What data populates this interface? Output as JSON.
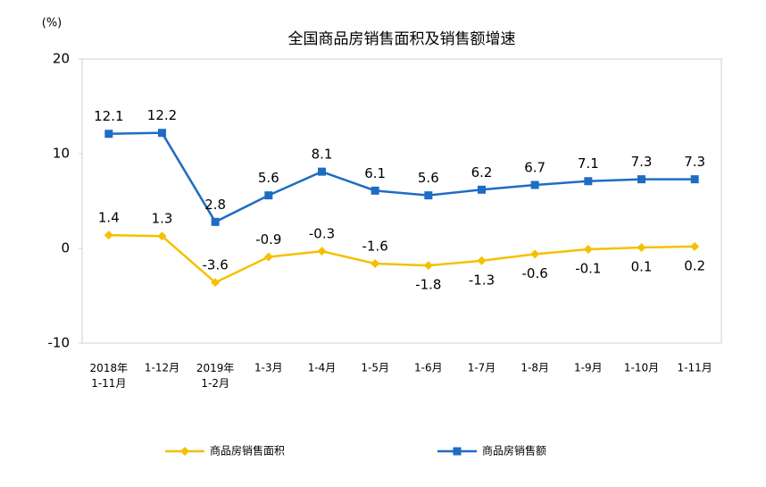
{
  "chart_data": {
    "type": "line",
    "title": "全国商品房销售面积及销售额增速",
    "y_unit": "(%)",
    "categories": [
      "2018年\n1-11月",
      "1-12月",
      "2019年\n1-2月",
      "1-3月",
      "1-4月",
      "1-5月",
      "1-6月",
      "1-7月",
      "1-8月",
      "1-9月",
      "1-10月",
      "1-11月"
    ],
    "series": [
      {
        "name": "商品房销售面积",
        "color": "#f5c000",
        "marker": "diamond",
        "values": [
          1.4,
          1.3,
          -3.6,
          -0.9,
          -0.3,
          -1.6,
          -1.8,
          -1.3,
          -0.6,
          -0.1,
          0.1,
          0.2
        ]
      },
      {
        "name": "商品房销售额",
        "color": "#1f6cc4",
        "marker": "square",
        "values": [
          12.1,
          12.2,
          2.8,
          5.6,
          8.1,
          6.1,
          5.6,
          6.2,
          6.7,
          7.1,
          7.3,
          7.3
        ]
      }
    ],
    "ylim": [
      -10,
      20
    ],
    "yticks": [
      -10,
      0,
      10,
      20
    ],
    "grid": false,
    "legend": "bottom"
  }
}
